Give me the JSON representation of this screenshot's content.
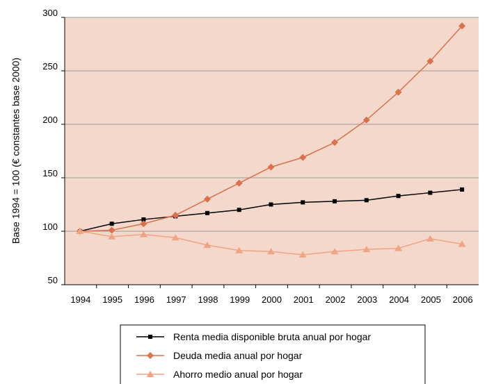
{
  "chart_data": {
    "type": "line",
    "ylabel": "Base 1994 = 100 (€ constantes base 2000)",
    "xlabel": "",
    "title": "",
    "categories": [
      "1994",
      "1995",
      "1996",
      "1997",
      "1998",
      "1999",
      "2000",
      "2001",
      "2002",
      "2003",
      "2004",
      "2005",
      "2006"
    ],
    "ylim": [
      50,
      300
    ],
    "yticks": [
      50,
      100,
      150,
      200,
      250,
      300
    ],
    "grid": true,
    "legend_position": "bottom",
    "plot_background": "#f3d8cb",
    "series": [
      {
        "name": "Renta media disponible bruta anual por hogar",
        "color": "#000000",
        "marker": "square",
        "values": [
          100,
          107,
          111,
          114,
          117,
          120,
          125,
          127,
          128,
          129,
          133,
          136,
          139
        ]
      },
      {
        "name": "Deuda media anual por hogar",
        "color": "#d9714c",
        "marker": "diamond",
        "values": [
          100,
          101,
          107,
          115,
          130,
          145,
          160,
          169,
          183,
          204,
          230,
          259,
          292
        ]
      },
      {
        "name": "Ahorro medio anual por hogar",
        "color": "#f0a483",
        "marker": "triangle",
        "values": [
          100,
          95,
          97,
          94,
          87,
          82,
          81,
          78,
          81,
          83,
          84,
          93,
          88
        ]
      }
    ]
  }
}
